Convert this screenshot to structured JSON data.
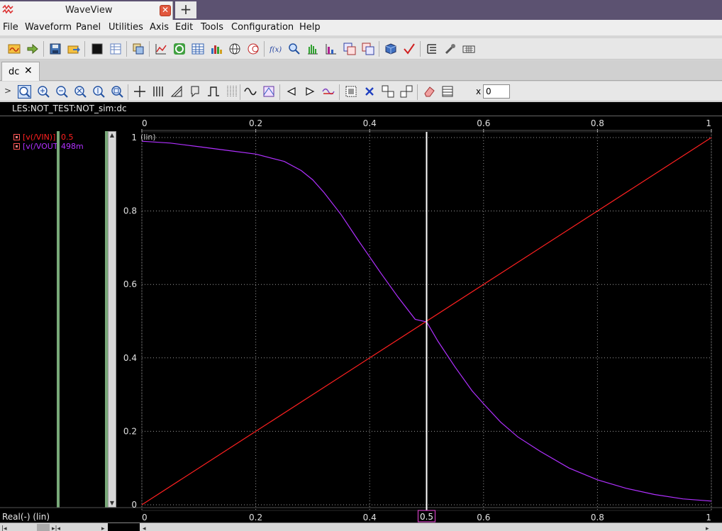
{
  "window": {
    "title": "WaveView",
    "close_glyph": "✕",
    "new_tab_glyph": "+"
  },
  "menu": [
    "File",
    "Waveform",
    "Panel",
    "Utilities",
    "Axis",
    "Edit",
    "Tools",
    "Configuration",
    "Help"
  ],
  "doc_tab": {
    "label": "dc",
    "close_glyph": "✕"
  },
  "toolbar2": {
    "expand_glyph": ">",
    "x_label": "x",
    "x_value": "0"
  },
  "panel": {
    "title": "LES:NOT_TEST:NOT_sim:dc",
    "y_scale_label": "(lin)",
    "x_unit_label": "Real(-) (lin)",
    "cursor_value": "0.5"
  },
  "signals": [
    {
      "name": "[v(/VIN)]",
      "value": "0.5",
      "color": "#ff2020"
    },
    {
      "name": "[v(/VOUT)]",
      "value": "498m",
      "color": "#b030ff"
    }
  ],
  "chart_data": {
    "type": "line",
    "x_ticks": [
      "0",
      "0.2",
      "0.4",
      "0.6",
      "0.8",
      "1"
    ],
    "y_ticks": [
      "0",
      "0.2",
      "0.4",
      "0.6",
      "0.8",
      "1"
    ],
    "xlim": [
      0,
      1
    ],
    "ylim": [
      0,
      1
    ],
    "grid": true,
    "cursor_x": 0.5,
    "series": [
      {
        "color": "#ff2020",
        "x": [
          0,
          1
        ],
        "y": [
          0,
          1
        ]
      },
      {
        "color": "#b030ff",
        "x": [
          0,
          0.05,
          0.1,
          0.15,
          0.2,
          0.25,
          0.28,
          0.3,
          0.32,
          0.35,
          0.38,
          0.4,
          0.42,
          0.45,
          0.48,
          0.5,
          0.52,
          0.55,
          0.58,
          0.6,
          0.63,
          0.66,
          0.7,
          0.75,
          0.8,
          0.85,
          0.9,
          0.95,
          1.0
        ],
        "y": [
          0.99,
          0.985,
          0.975,
          0.965,
          0.955,
          0.935,
          0.91,
          0.885,
          0.85,
          0.79,
          0.72,
          0.675,
          0.63,
          0.565,
          0.505,
          0.498,
          0.445,
          0.375,
          0.31,
          0.275,
          0.225,
          0.185,
          0.145,
          0.1,
          0.068,
          0.045,
          0.028,
          0.016,
          0.01
        ]
      }
    ]
  },
  "icons": {
    "toolbar": [
      "open-waveform-icon",
      "load-icon",
      "save-icon",
      "export-icon",
      "terminal-icon",
      "table-config-icon",
      "copy-icon",
      "line-plot-icon",
      "refresh-icon",
      "table-icon",
      "bar-chart-icon",
      "globe-icon",
      "smith-chart-icon",
      "function-icon",
      "search-icon",
      "histogram-icon",
      "statistics-icon",
      "compare-icon",
      "compare-alt-icon",
      "cube-icon",
      "check-icon",
      "list-icon",
      "wrench-icon",
      "keyboard-icon"
    ],
    "toolbar2": [
      "zoom-fit-icon",
      "zoom-in-icon",
      "zoom-out-icon",
      "zoom-x-icon",
      "zoom-y-icon",
      "zoom-box-icon",
      "crosshair-icon",
      "vertical-bars-icon",
      "measure-icon",
      "marker-icon",
      "pulse-icon",
      "grid-dots-icon",
      "sine-wave-icon",
      "eye-diagram-icon",
      "prev-arrow-icon",
      "next-arrow-icon",
      "delete-wave-icon",
      "group-icon",
      "close-icon",
      "split-icon",
      "merge-icon",
      "eraser-icon",
      "panel-icon"
    ]
  }
}
